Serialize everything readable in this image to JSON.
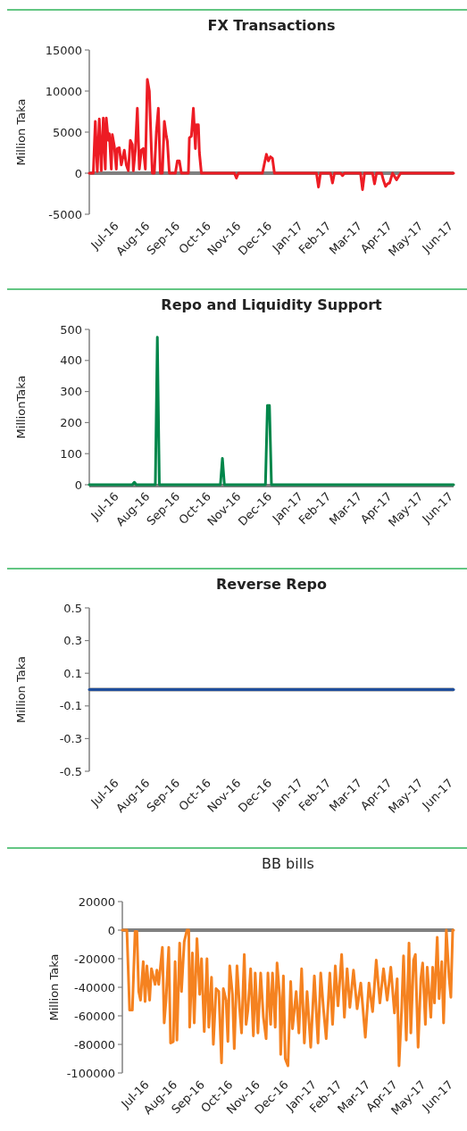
{
  "chart_data": [
    {
      "type": "line",
      "title": "FX Transactions",
      "ylabel": "Million Taka",
      "ylim": [
        -5000,
        15000
      ],
      "yticks": [
        -5000,
        0,
        5000,
        10000,
        15000
      ],
      "xlim": [
        "2016-07-01",
        "2017-06-30"
      ],
      "xticks": [
        {
          "value": "2016-07-31",
          "label": "Jul-16"
        },
        {
          "value": "2016-08-31",
          "label": "Aug-16"
        },
        {
          "value": "2016-09-30",
          "label": "Sep-16"
        },
        {
          "value": "2016-10-31",
          "label": "Oct-16"
        },
        {
          "value": "2016-11-30",
          "label": "Nov-16"
        },
        {
          "value": "2016-12-31",
          "label": "Dec-16"
        },
        {
          "value": "2017-01-31",
          "label": "Jan-17"
        },
        {
          "value": "2017-02-28",
          "label": "Feb-17"
        },
        {
          "value": "2017-03-31",
          "label": "Mar-17"
        },
        {
          "value": "2017-04-30",
          "label": "Apr-17"
        },
        {
          "value": "2017-05-31",
          "label": "May-17"
        },
        {
          "value": "2017-06-30",
          "label": "Jun-17"
        }
      ],
      "ref_lines": [
        {
          "axis": "y",
          "value": 0,
          "color": "#808080"
        }
      ],
      "series": [
        {
          "color": "#ed1c24",
          "x": [
            "2016-07-01",
            "2016-07-05",
            "2016-07-07",
            "2016-07-09",
            "2016-07-11",
            "2016-07-13",
            "2016-07-15",
            "2016-07-17",
            "2016-07-18",
            "2016-07-20",
            "2016-07-21",
            "2016-07-23",
            "2016-07-24",
            "2016-07-26",
            "2016-07-28",
            "2016-07-29",
            "2016-07-31",
            "2016-08-02",
            "2016-08-05",
            "2016-08-07",
            "2016-08-09",
            "2016-08-11",
            "2016-08-13",
            "2016-08-14",
            "2016-08-16",
            "2016-08-18",
            "2016-08-20",
            "2016-08-22",
            "2016-08-24",
            "2016-08-26",
            "2016-08-28",
            "2016-08-30",
            "2016-09-01",
            "2016-09-02",
            "2016-09-04",
            "2016-09-06",
            "2016-09-08",
            "2016-09-10",
            "2016-09-12",
            "2016-09-14",
            "2016-09-16",
            "2016-09-17",
            "2016-09-19",
            "2016-09-25",
            "2016-09-27",
            "2016-09-29",
            "2016-10-01",
            "2016-10-08",
            "2016-10-09",
            "2016-10-11",
            "2016-10-13",
            "2016-10-15",
            "2016-10-16",
            "2016-10-18",
            "2016-10-19",
            "2016-10-21",
            "2016-11-23",
            "2016-11-25",
            "2016-11-27",
            "2016-12-21",
            "2016-12-23",
            "2016-12-25",
            "2016-12-27",
            "2016-12-29",
            "2016-12-31",
            "2017-01-02",
            "2017-02-13",
            "2017-02-15",
            "2017-02-17",
            "2017-02-27",
            "2017-03-01",
            "2017-03-03",
            "2017-03-09",
            "2017-03-11",
            "2017-03-13",
            "2017-03-29",
            "2017-03-31",
            "2017-04-02",
            "2017-04-10",
            "2017-04-12",
            "2017-04-14",
            "2017-04-19",
            "2017-04-21",
            "2017-04-23",
            "2017-04-25",
            "2017-04-27",
            "2017-04-30",
            "2017-05-04",
            "2017-05-08",
            "2017-06-30"
          ],
          "values": [
            0,
            0,
            6300,
            200,
            6600,
            300,
            6700,
            500,
            6700,
            4000,
            4800,
            500,
            4700,
            3300,
            500,
            3000,
            3100,
            1000,
            2800,
            1000,
            300,
            4000,
            3500,
            300,
            2800,
            7900,
            500,
            2800,
            3000,
            500,
            11400,
            10000,
            3000,
            0,
            0,
            5000,
            7900,
            0,
            0,
            6300,
            4500,
            3900,
            0,
            0,
            1500,
            1500,
            0,
            0,
            4300,
            4500,
            7900,
            3000,
            5900,
            5900,
            2500,
            0,
            0,
            -600,
            0,
            0,
            1200,
            2300,
            1500,
            2000,
            1800,
            0,
            0,
            -1700,
            0,
            0,
            -1200,
            0,
            0,
            -300,
            0,
            0,
            -2000,
            0,
            0,
            -1300,
            0,
            0,
            -900,
            -1600,
            -1300,
            -1200,
            0,
            -800,
            0,
            0
          ]
        }
      ]
    },
    {
      "type": "line",
      "title": "Repo and Liquidity Support",
      "ylabel": "MillionTaka",
      "ylim": [
        0,
        500
      ],
      "yticks": [
        0,
        100,
        200,
        300,
        400,
        500
      ],
      "xlim": [
        "2016-07-01",
        "2017-06-30"
      ],
      "xticks": [
        {
          "value": "2016-07-31",
          "label": "Jul-16"
        },
        {
          "value": "2016-08-31",
          "label": "Aug-16"
        },
        {
          "value": "2016-09-30",
          "label": "Sep-16"
        },
        {
          "value": "2016-10-31",
          "label": "Oct-16"
        },
        {
          "value": "2016-11-30",
          "label": "Nov-16"
        },
        {
          "value": "2016-12-31",
          "label": "Dec-16"
        },
        {
          "value": "2017-01-31",
          "label": "Jan-17"
        },
        {
          "value": "2017-02-28",
          "label": "Feb-17"
        },
        {
          "value": "2017-03-31",
          "label": "Mar-17"
        },
        {
          "value": "2017-04-30",
          "label": "Apr-17"
        },
        {
          "value": "2017-05-31",
          "label": "May-17"
        },
        {
          "value": "2017-06-30",
          "label": "Jun-17"
        }
      ],
      "series": [
        {
          "color": "#00864a",
          "x": [
            "2016-07-01",
            "2016-08-13",
            "2016-08-15",
            "2016-08-17",
            "2016-09-05",
            "2016-09-07",
            "2016-09-09",
            "2016-11-09",
            "2016-11-11",
            "2016-11-13",
            "2016-12-24",
            "2016-12-26",
            "2016-12-28",
            "2016-12-30",
            "2017-06-30"
          ],
          "values": [
            0,
            0,
            8,
            0,
            0,
            475,
            0,
            0,
            85,
            0,
            0,
            255,
            255,
            0,
            0
          ]
        }
      ]
    },
    {
      "type": "line",
      "title": "Reverse Repo",
      "ylabel": "Million Taka",
      "ylim": [
        -0.5,
        0.5
      ],
      "yticks": [
        -0.5,
        -0.3,
        -0.1,
        0.1,
        0.3,
        0.5
      ],
      "xlim": [
        "2016-07-01",
        "2017-06-30"
      ],
      "xticks": [
        {
          "value": "2016-07-31",
          "label": "Jul-16"
        },
        {
          "value": "2016-08-31",
          "label": "Aug-16"
        },
        {
          "value": "2016-09-30",
          "label": "Sep-16"
        },
        {
          "value": "2016-10-31",
          "label": "Oct-16"
        },
        {
          "value": "2016-11-30",
          "label": "Nov-16"
        },
        {
          "value": "2016-12-31",
          "label": "Dec-16"
        },
        {
          "value": "2017-01-31",
          "label": "Jan-17"
        },
        {
          "value": "2017-02-28",
          "label": "Feb-17"
        },
        {
          "value": "2017-03-31",
          "label": "Mar-17"
        },
        {
          "value": "2017-04-30",
          "label": "Apr-17"
        },
        {
          "value": "2017-05-31",
          "label": "May-17"
        },
        {
          "value": "2017-06-30",
          "label": "Jun-17"
        }
      ],
      "ref_lines": [
        {
          "axis": "y",
          "value": 0,
          "color": "#808080"
        }
      ],
      "series": [
        {
          "color": "#1f4e9c",
          "x": [
            "2016-07-01",
            "2016-10-01",
            "2017-01-01",
            "2017-04-01",
            "2017-06-30"
          ],
          "values": [
            0,
            0,
            0,
            0,
            0
          ]
        }
      ]
    },
    {
      "type": "line",
      "title": "BB bills",
      "ylabel": "Million Taka",
      "ylim": [
        -100000,
        20000
      ],
      "yticks": [
        -100000,
        -80000,
        -60000,
        -40000,
        -20000,
        0,
        20000
      ],
      "xlim": [
        "2016-07-01",
        "2017-06-30"
      ],
      "xticks": [
        {
          "value": "2016-07-31",
          "label": "Jul-16"
        },
        {
          "value": "2016-08-31",
          "label": "Aug-16"
        },
        {
          "value": "2016-09-30",
          "label": "Sep-16"
        },
        {
          "value": "2016-10-31",
          "label": "Oct-16"
        },
        {
          "value": "2016-11-30",
          "label": "Nov-16"
        },
        {
          "value": "2016-12-31",
          "label": "Dec-16"
        },
        {
          "value": "2017-01-31",
          "label": "Jan-17"
        },
        {
          "value": "2017-02-28",
          "label": "Feb-17"
        },
        {
          "value": "2017-03-31",
          "label": "Mar-17"
        },
        {
          "value": "2017-04-30",
          "label": "Apr-17"
        },
        {
          "value": "2017-05-31",
          "label": "May-17"
        },
        {
          "value": "2017-06-30",
          "label": "Jun-17"
        }
      ],
      "ref_lines": [
        {
          "axis": "y",
          "value": 0,
          "color": "#808080"
        }
      ],
      "series": [
        {
          "color": "#f58220",
          "x": [
            "2016-07-01",
            "2016-07-03",
            "2016-07-06",
            "2016-07-09",
            "2016-07-12",
            "2016-07-15",
            "2016-07-17",
            "2016-07-19",
            "2016-07-21",
            "2016-07-24",
            "2016-07-26",
            "2016-07-28",
            "2016-07-31",
            "2016-08-02",
            "2016-08-06",
            "2016-08-08",
            "2016-08-10",
            "2016-08-14",
            "2016-08-16",
            "2016-08-18",
            "2016-08-21",
            "2016-08-23",
            "2016-08-26",
            "2016-08-28",
            "2016-08-30",
            "2016-09-02",
            "2016-09-04",
            "2016-09-07",
            "2016-09-10",
            "2016-09-12",
            "2016-09-13",
            "2016-09-16",
            "2016-09-18",
            "2016-09-21",
            "2016-09-24",
            "2016-09-26",
            "2016-09-29",
            "2016-10-02",
            "2016-10-04",
            "2016-10-07",
            "2016-10-09",
            "2016-10-12",
            "2016-10-15",
            "2016-10-18",
            "2016-10-20",
            "2016-10-23",
            "2016-10-25",
            "2016-10-27",
            "2016-10-30",
            "2016-11-01",
            "2016-11-04",
            "2016-11-07",
            "2016-11-09",
            "2016-11-12",
            "2016-11-14",
            "2016-11-16",
            "2016-11-19",
            "2016-11-22",
            "2016-11-24",
            "2016-11-27",
            "2016-11-30",
            "2016-12-03",
            "2016-12-06",
            "2016-12-08",
            "2016-12-11",
            "2016-12-13",
            "2016-12-16",
            "2016-12-18",
            "2016-12-21",
            "2016-12-22",
            "2016-12-25",
            "2016-12-27",
            "2016-12-30",
            "2017-01-02",
            "2017-01-04",
            "2017-01-08",
            "2017-01-11",
            "2017-01-14",
            "2017-01-17",
            "2017-01-20",
            "2017-01-24",
            "2017-01-28",
            "2017-02-01",
            "2017-02-04",
            "2017-02-07",
            "2017-02-10",
            "2017-02-14",
            "2017-02-17",
            "2017-02-20",
            "2017-02-23",
            "2017-02-27",
            "2017-03-02",
            "2017-03-05",
            "2017-03-08",
            "2017-03-12",
            "2017-03-16",
            "2017-03-20",
            "2017-03-25",
            "2017-03-29",
            "2017-04-02",
            "2017-04-06",
            "2017-04-10",
            "2017-04-14",
            "2017-04-18",
            "2017-04-22",
            "2017-04-26",
            "2017-04-29",
            "2017-05-01",
            "2017-05-04",
            "2017-05-06",
            "2017-05-09",
            "2017-05-12",
            "2017-05-14",
            "2017-05-17",
            "2017-05-19",
            "2017-05-22",
            "2017-05-25",
            "2017-05-27",
            "2017-05-30",
            "2017-06-01",
            "2017-06-05",
            "2017-06-07",
            "2017-06-09",
            "2017-06-12",
            "2017-06-14",
            "2017-06-17",
            "2017-06-19",
            "2017-06-22",
            "2017-06-25",
            "2017-06-27",
            "2017-06-29",
            "2017-06-30"
          ],
          "values": [
            0,
            0,
            0,
            -56000,
            -56000,
            -1000,
            -1000,
            -43000,
            -49000,
            -22000,
            -50000,
            -25000,
            -49000,
            -27000,
            -38000,
            -28000,
            -38000,
            -12000,
            -65000,
            -49000,
            -12000,
            -79000,
            -78000,
            -22000,
            -77000,
            -9000,
            -43000,
            -8000,
            0,
            0,
            -68000,
            -16000,
            -65000,
            -6000,
            -45000,
            -20000,
            -71000,
            -20000,
            -68000,
            -33000,
            -80000,
            -41000,
            -43000,
            -93000,
            -41000,
            -49000,
            -78000,
            -25000,
            -45000,
            -83000,
            -25000,
            -56000,
            -72000,
            -17000,
            -66000,
            -56000,
            -27000,
            -74000,
            -30000,
            -72000,
            -30000,
            -61000,
            -76000,
            -30000,
            -66000,
            -30000,
            -68000,
            -23000,
            -47000,
            -87000,
            -32000,
            -90000,
            -95000,
            -36000,
            -69000,
            -43000,
            -72000,
            -27000,
            -79000,
            -43000,
            -82000,
            -32000,
            -79000,
            -30000,
            -55000,
            -76000,
            -30000,
            -66000,
            -25000,
            -53000,
            -17000,
            -61000,
            -27000,
            -54000,
            -28000,
            -55000,
            -37000,
            -75000,
            -37000,
            -57000,
            -21000,
            -51000,
            -27000,
            -49000,
            -26000,
            -58000,
            -34000,
            -95000,
            -54000,
            -18000,
            -77000,
            -9000,
            -72000,
            -21000,
            -17000,
            -82000,
            -34000,
            -23000,
            -66000,
            -26000,
            -61000,
            -26000,
            -51000,
            -5000,
            -48000,
            -22000,
            -65000,
            0,
            -33000,
            -47000,
            0,
            0
          ]
        }
      ]
    }
  ]
}
